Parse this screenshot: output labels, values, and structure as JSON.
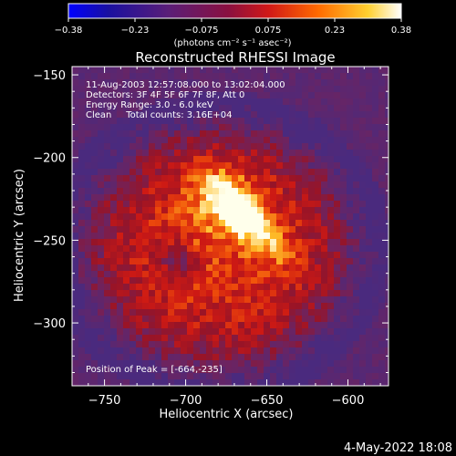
{
  "colorbar": {
    "ticks": [
      "-0.38",
      "-0.23",
      "-0.075",
      "0.075",
      "0.23",
      "0.38"
    ],
    "unit_label": "(photons cm⁻² s⁻¹ asec⁻²)",
    "colors": [
      "#0000ff",
      "#3a1070",
      "#6b2a6b",
      "#c8141e",
      "#ff7a00",
      "#ffe040",
      "#ffffff"
    ]
  },
  "chart_data": {
    "type": "heatmap",
    "title": "Reconstructed RHESSI Image",
    "info_lines": [
      "11-Aug-2003 12:57:08.000 to 13:02:04.000",
      "Detectors: 3F 4F 5F 6F 7F 8F, Att 0",
      "Energy Range: 3.0 - 6.0 keV",
      "Clean     Total counts: 3.16E+04"
    ],
    "annotation": "Position of Peak = [-664,-235]",
    "xlabel": "Heliocentric X (arcsec)",
    "ylabel": "Heliocentric Y (arcsec)",
    "xlim": [
      -770,
      -575
    ],
    "ylim": [
      -338,
      -145
    ],
    "xticks": [
      -750,
      -700,
      -650,
      -600
    ],
    "yticks": [
      -150,
      -200,
      -250,
      -300
    ],
    "xtick_labels": [
      "−750",
      "−700",
      "−650",
      "−600"
    ],
    "ytick_labels": [
      "−150",
      "−200",
      "−250",
      "−300"
    ],
    "peak": {
      "x": -664,
      "y": -235
    },
    "colorbar_range": [
      -0.38,
      0.38
    ]
  },
  "footer": {
    "date": "4-May-2022 18:08"
  }
}
